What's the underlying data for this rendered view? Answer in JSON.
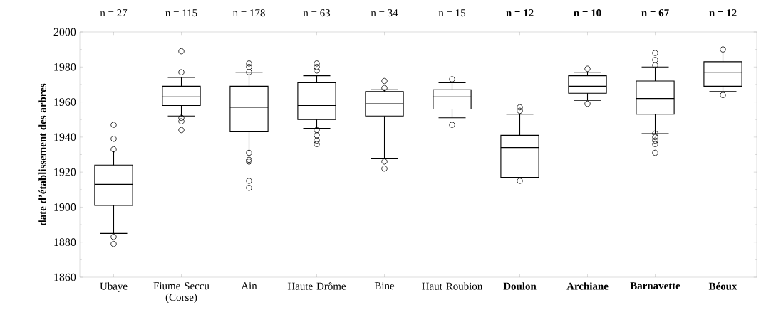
{
  "chart_data": {
    "type": "box",
    "ylabel": "date d’établissement des arbres",
    "categories": [
      "Ubaye",
      "Fiume Seccu (Corse)",
      "Ain",
      "Haute Drôme",
      "Bine",
      "Haut Roubion",
      "**Doulon**",
      "**Archiane**",
      "**Barnavette**",
      "**Béoux**"
    ],
    "annotations": [
      "n = 27",
      "n = 115",
      "n = 178",
      "n = 63",
      "n = 34",
      "n = 15",
      "**n = 12**",
      "**n = 10**",
      "**n = 67**",
      "**n = 12**"
    ],
    "ylim": [
      1860,
      2000
    ],
    "yticks": [
      1860,
      1880,
      1900,
      1920,
      1940,
      1960,
      1980,
      2000
    ],
    "series": [
      {
        "color": "#000000",
        "boxes": [
          {
            "low": 1885,
            "q1": 1901,
            "median": 1913,
            "q3": 1924,
            "high": 1932,
            "outliers": [
              1947,
              1939,
              1933,
              1883,
              1879
            ]
          },
          {
            "low": 1952,
            "q1": 1958,
            "median": 1963,
            "q3": 1969,
            "high": 1974,
            "outliers": [
              1989,
              1977,
              1951,
              1949,
              1944
            ]
          },
          {
            "low": 1932,
            "q1": 1943,
            "median": 1957,
            "q3": 1969,
            "high": 1977,
            "outliers": [
              1982,
              1980,
              1977,
              1931,
              1927,
              1926,
              1915,
              1911
            ]
          },
          {
            "low": 1945,
            "q1": 1950,
            "median": 1958,
            "q3": 1971,
            "high": 1975,
            "outliers": [
              1982,
              1980,
              1978,
              1944,
              1941,
              1938,
              1936
            ]
          },
          {
            "low": 1928,
            "q1": 1952,
            "median": 1959,
            "q3": 1966,
            "high": 1967,
            "outliers": [
              1972,
              1968,
              1926,
              1922
            ]
          },
          {
            "low": 1951,
            "q1": 1956,
            "median": 1963,
            "q3": 1967,
            "high": 1971,
            "outliers": [
              1973,
              1947
            ]
          },
          {
            "low": 1917,
            "q1": 1917,
            "median": 1934,
            "q3": 1941,
            "high": 1953,
            "outliers": [
              1957,
              1955,
              1915
            ]
          },
          {
            "low": 1961,
            "q1": 1965,
            "median": 1969,
            "q3": 1975,
            "high": 1977,
            "outliers": [
              1979,
              1959
            ]
          },
          {
            "low": 1942,
            "q1": 1953,
            "median": 1962,
            "q3": 1972,
            "high": 1980,
            "outliers": [
              1988,
              1984,
              1981,
              1942,
              1940,
              1938,
              1936,
              1931
            ]
          },
          {
            "low": 1966,
            "q1": 1969,
            "median": 1977,
            "q3": 1983,
            "high": 1988,
            "outliers": [
              1990,
              1964
            ]
          }
        ]
      }
    ]
  }
}
